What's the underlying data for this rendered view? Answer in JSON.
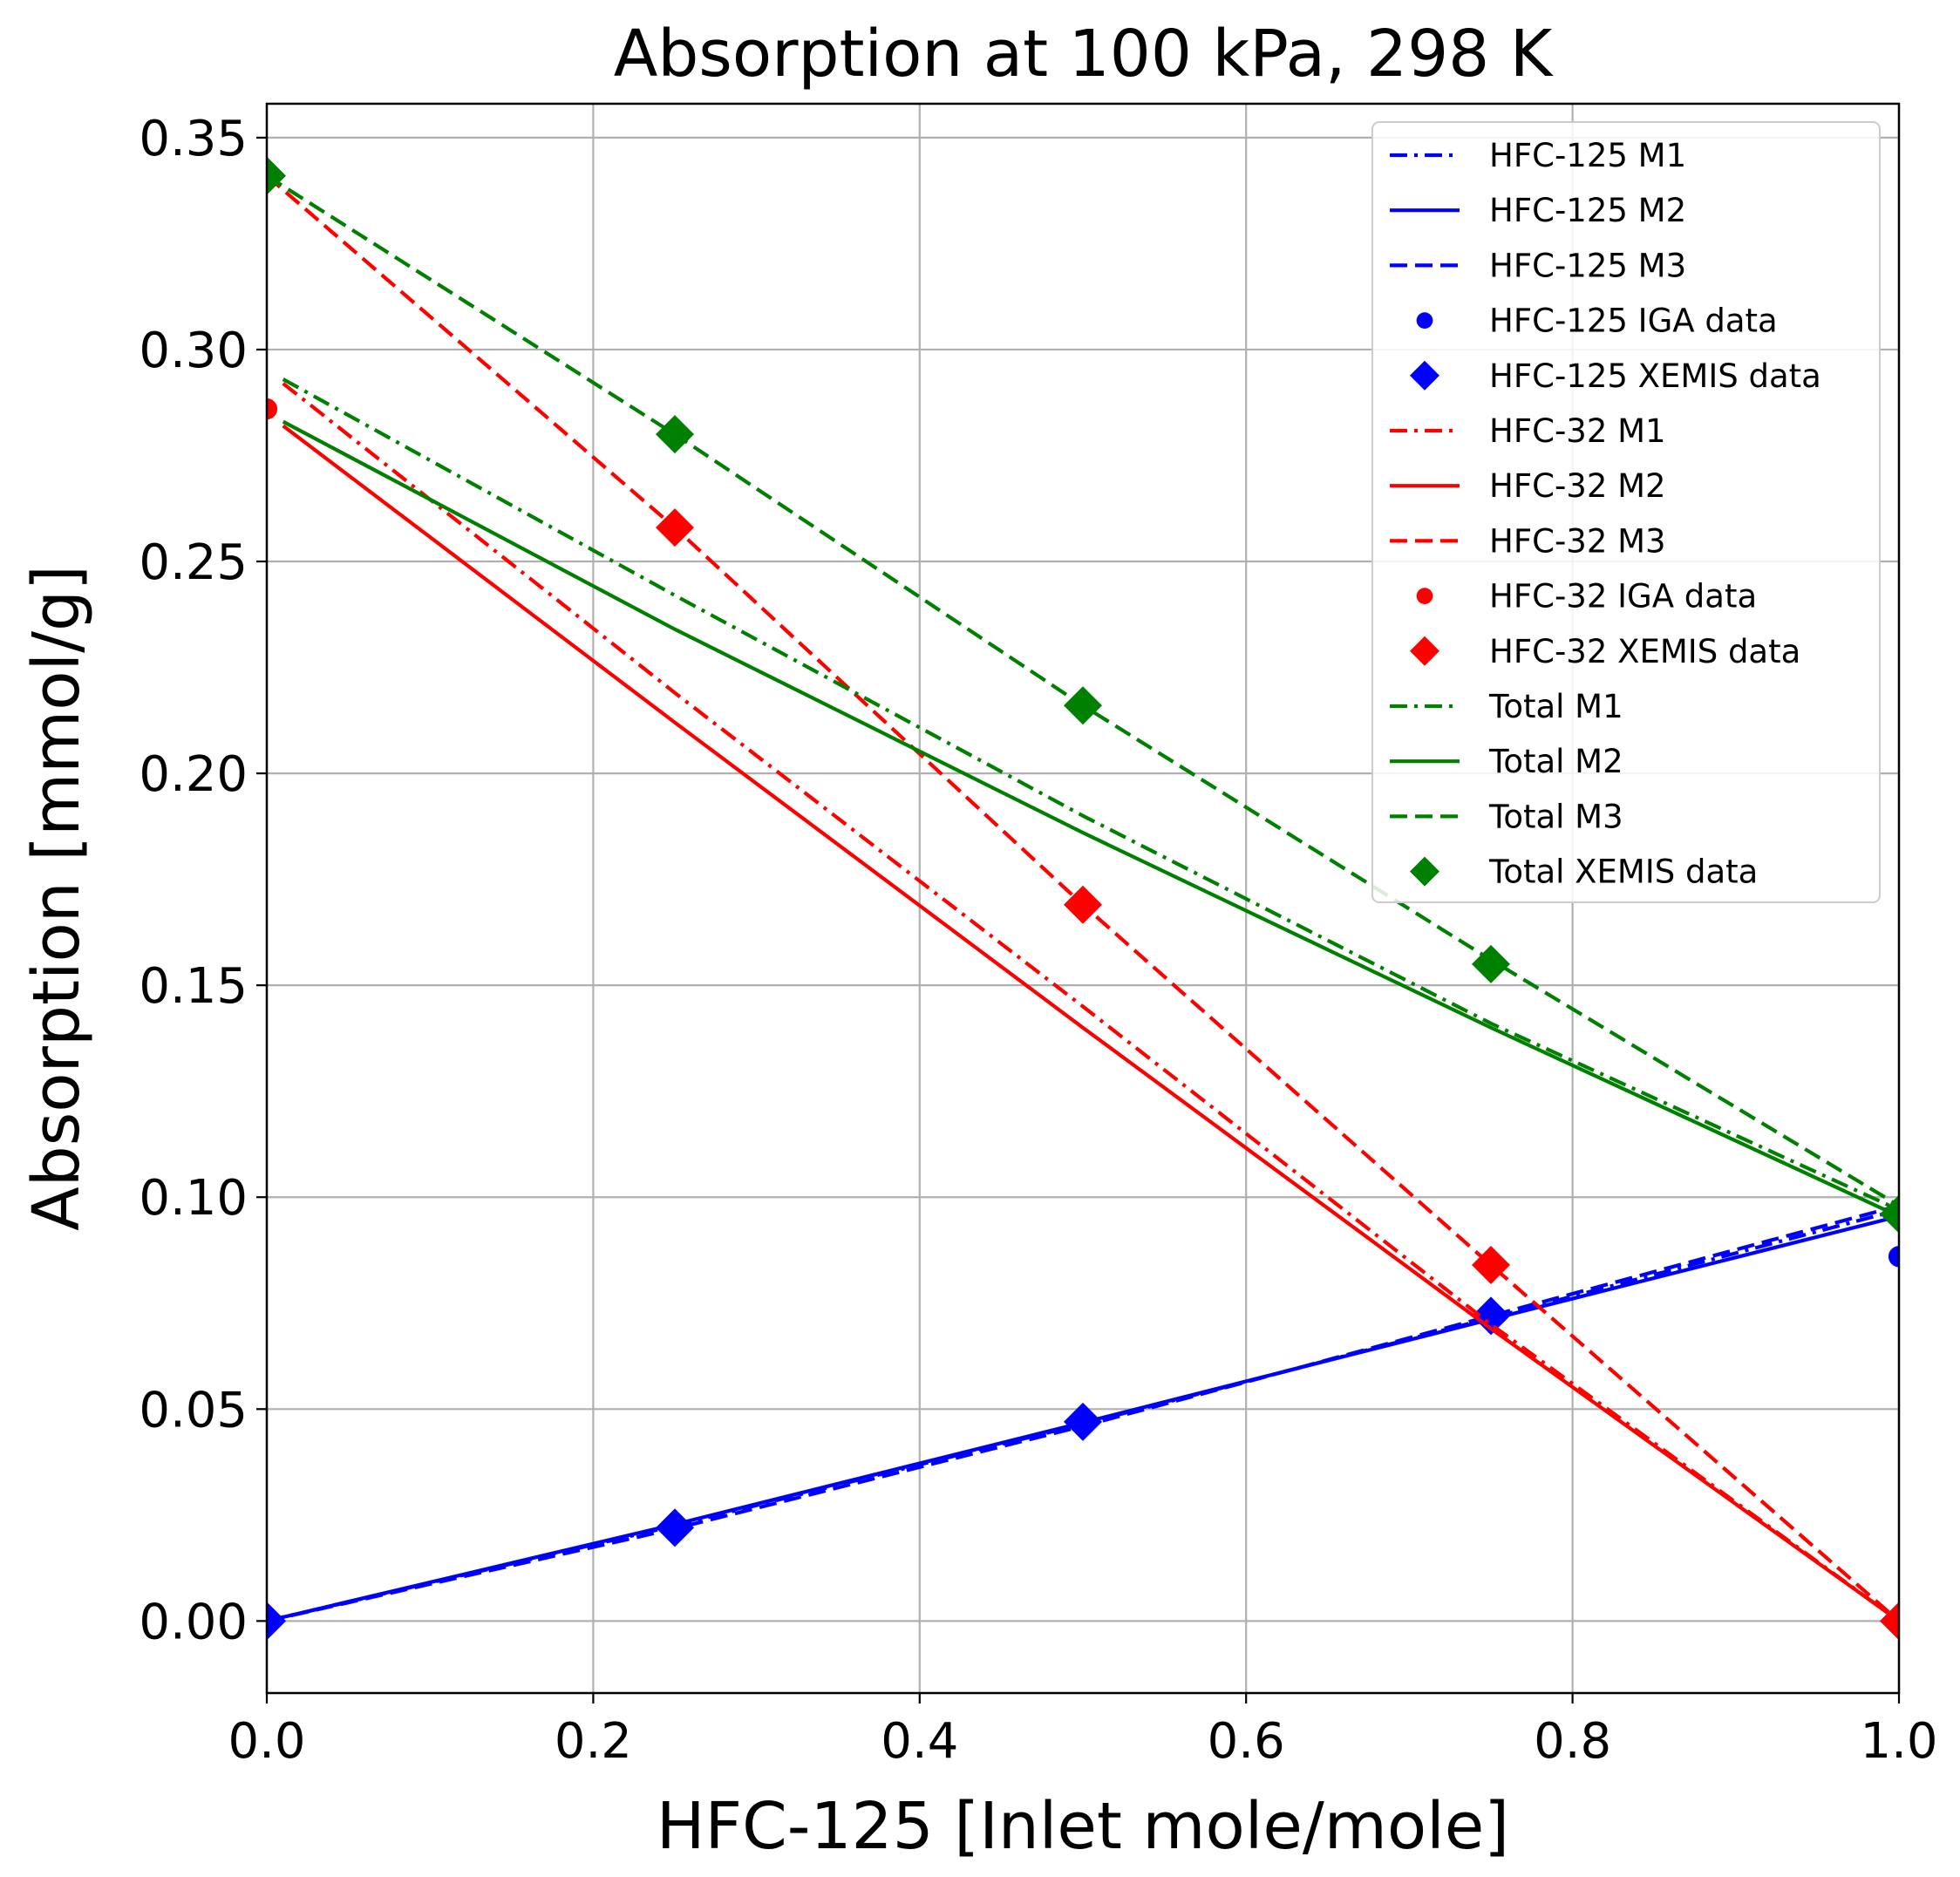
{
  "chart_data": {
    "type": "line",
    "title": "Absorption at 100 kPa, 298 K",
    "xlabel": "HFC-125 [Inlet mole/mole]",
    "ylabel": "Absorption [mmol/g]",
    "xlim": [
      0.0,
      1.0
    ],
    "ylim": [
      -0.017,
      0.358
    ],
    "xticks": [
      "0.0",
      "0.2",
      "0.4",
      "0.6",
      "0.8",
      "1.0"
    ],
    "yticks": [
      "0.00",
      "0.05",
      "0.10",
      "0.15",
      "0.20",
      "0.25",
      "0.30",
      "0.35"
    ],
    "grid": true,
    "legend_position": "top-right",
    "colors": {
      "hfc125": "#0000ff",
      "hfc32": "#ff0000",
      "total": "#008000"
    },
    "series": [
      {
        "name": "HFC-125 M1",
        "color": "#0000ff",
        "style": "dashdot",
        "x": [
          0.0,
          0.25,
          0.5,
          0.75,
          1.0
        ],
        "y": [
          0.0,
          0.0225,
          0.0465,
          0.0715,
          0.097
        ]
      },
      {
        "name": "HFC-125 M2",
        "color": "#0000ff",
        "style": "solid",
        "x": [
          0.0,
          0.25,
          0.5,
          0.75,
          1.0
        ],
        "y": [
          0.0,
          0.0228,
          0.0468,
          0.0712,
          0.0955
        ]
      },
      {
        "name": "HFC-125 M3",
        "color": "#0000ff",
        "style": "dashed",
        "x": [
          0.0,
          0.25,
          0.5,
          0.75,
          1.0
        ],
        "y": [
          0.0,
          0.0218,
          0.046,
          0.072,
          0.098
        ]
      },
      {
        "name": "HFC-125 IGA data",
        "color": "#0000ff",
        "style": "marker-circle",
        "x": [
          0.0,
          1.0
        ],
        "y": [
          0.0,
          0.086
        ]
      },
      {
        "name": "HFC-125 XEMIS data",
        "color": "#0000ff",
        "style": "marker-diamond",
        "x": [
          0.0,
          0.25,
          0.5,
          0.75
        ],
        "y": [
          0.0,
          0.022,
          0.047,
          0.072
        ]
      },
      {
        "name": "HFC-32 M1",
        "color": "#ff0000",
        "style": "dashdot",
        "x": [
          0.01,
          0.25,
          0.5,
          0.75,
          1.0
        ],
        "y": [
          0.292,
          0.219,
          0.145,
          0.07,
          0.0
        ]
      },
      {
        "name": "HFC-32 M2",
        "color": "#ff0000",
        "style": "solid",
        "x": [
          0.01,
          0.25,
          0.5,
          0.75,
          1.0
        ],
        "y": [
          0.282,
          0.212,
          0.14,
          0.069,
          0.0
        ]
      },
      {
        "name": "HFC-32 M3",
        "color": "#ff0000",
        "style": "dashed",
        "x": [
          0.0,
          0.25,
          0.5,
          0.75,
          1.0
        ],
        "y": [
          0.341,
          0.258,
          0.169,
          0.084,
          0.0
        ]
      },
      {
        "name": "HFC-32 IGA data",
        "color": "#ff0000",
        "style": "marker-circle",
        "x": [
          0.0
        ],
        "y": [
          0.286
        ]
      },
      {
        "name": "HFC-32 XEMIS data",
        "color": "#ff0000",
        "style": "marker-diamond",
        "x": [
          0.25,
          0.5,
          0.75,
          1.0
        ],
        "y": [
          0.258,
          0.169,
          0.084,
          0.0
        ]
      },
      {
        "name": "Total M1",
        "color": "#008000",
        "style": "dashdot",
        "x": [
          0.01,
          0.25,
          0.5,
          0.75,
          1.0
        ],
        "y": [
          0.293,
          0.242,
          0.19,
          0.141,
          0.097
        ]
      },
      {
        "name": "Total M2",
        "color": "#008000",
        "style": "solid",
        "x": [
          0.01,
          0.25,
          0.5,
          0.75,
          1.0
        ],
        "y": [
          0.283,
          0.234,
          0.186,
          0.14,
          0.0955
        ]
      },
      {
        "name": "Total M3",
        "color": "#008000",
        "style": "dashed",
        "x": [
          0.0,
          0.25,
          0.5,
          0.75,
          1.0
        ],
        "y": [
          0.341,
          0.28,
          0.216,
          0.156,
          0.098
        ]
      },
      {
        "name": "Total XEMIS data",
        "color": "#008000",
        "style": "marker-diamond",
        "x": [
          0.0,
          0.25,
          0.5,
          0.75,
          1.0
        ],
        "y": [
          0.341,
          0.28,
          0.216,
          0.155,
          0.096
        ]
      }
    ]
  }
}
